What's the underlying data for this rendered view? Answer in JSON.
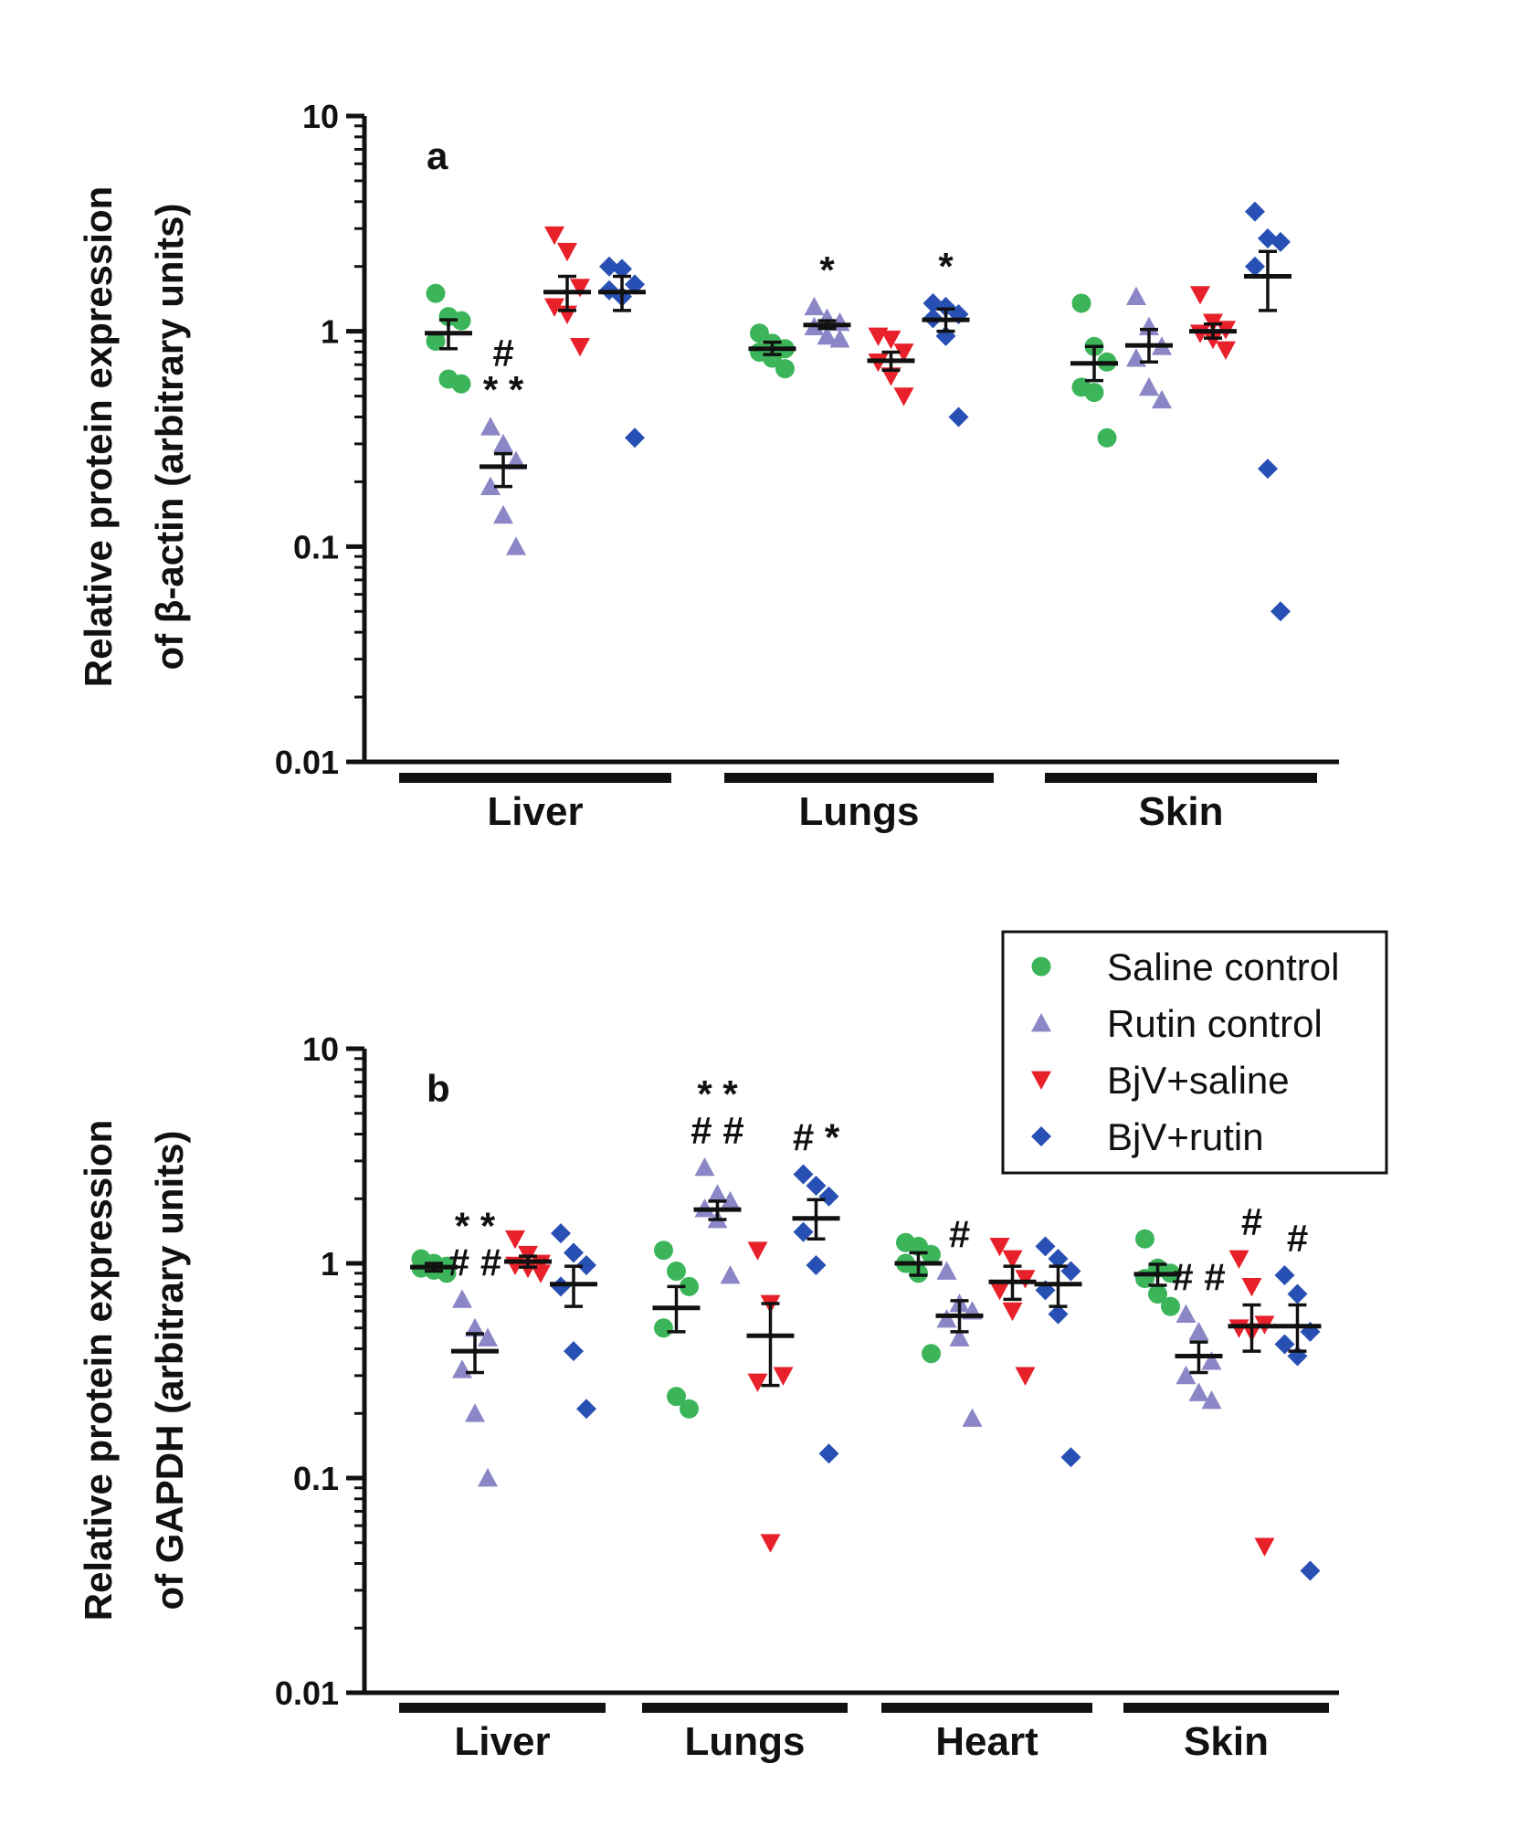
{
  "colors": {
    "saline_control": "#3cb55a",
    "rutin_control": "#8b86c6",
    "bjv_saline": "#e8202a",
    "bjv_rutin": "#2850b4",
    "axis": "#111111"
  },
  "legend": {
    "items": [
      {
        "name": "Saline control",
        "marker": "circle",
        "color": "#3cb55a"
      },
      {
        "name": "Rutin control",
        "marker": "triangle-up",
        "color": "#8b86c6"
      },
      {
        "name": "BjV+saline",
        "marker": "triangle-down",
        "color": "#e8202a"
      },
      {
        "name": "BjV+rutin",
        "marker": "diamond",
        "color": "#2850b4"
      }
    ]
  },
  "chart_data": [
    {
      "type": "scatter",
      "panel": "a",
      "ylabel_lines": [
        "Relative protein expression",
        "of β-actin (arbitrary units)"
      ],
      "yscale": "log",
      "ylim": [
        0.01,
        10
      ],
      "ytick_labels": [
        "10",
        "1",
        "0.1",
        "0.01"
      ],
      "categories": [
        "Liver",
        "Lungs",
        "Skin"
      ],
      "groups": [
        {
          "category": "Liver",
          "series": [
            {
              "name": "Saline control",
              "points": [
                1.5,
                1.17,
                1.12,
                0.9,
                0.6,
                0.57
              ],
              "mean": 0.98,
              "sem": [
                0.83,
                1.13
              ]
            },
            {
              "name": "Rutin control",
              "points": [
                0.36,
                0.3,
                0.25,
                0.19,
                0.14,
                0.1
              ],
              "mean": 0.235,
              "sem": [
                0.19,
                0.27
              ]
            },
            {
              "name": "BjV+saline",
              "points": [
                2.8,
                2.35,
                1.6,
                1.3,
                1.2,
                0.85
              ],
              "mean": 1.52,
              "sem": [
                1.25,
                1.8
              ]
            },
            {
              "name": "BjV+rutin",
              "points": [
                2.0,
                1.95,
                1.65,
                1.55,
                1.45,
                0.32
              ],
              "mean": 1.52,
              "sem": [
                1.25,
                1.8
              ]
            }
          ],
          "annotations": [
            "#",
            "**"
          ],
          "annotation_series": "Rutin control"
        },
        {
          "category": "Lungs",
          "series": [
            {
              "name": "Saline control",
              "points": [
                0.98,
                0.88,
                0.83,
                0.8,
                0.75,
                0.67
              ],
              "mean": 0.83,
              "sem": [
                0.78,
                0.89
              ]
            },
            {
              "name": "Rutin control",
              "points": [
                1.3,
                1.15,
                1.1,
                1.05,
                0.95,
                0.92
              ],
              "mean": 1.07,
              "sem": [
                1.03,
                1.12
              ]
            },
            {
              "name": "BjV+saline",
              "points": [
                0.95,
                0.92,
                0.8,
                0.72,
                0.62,
                0.5
              ],
              "mean": 0.73,
              "sem": [
                0.66,
                0.8
              ]
            },
            {
              "name": "BjV+rutin",
              "points": [
                1.35,
                1.3,
                1.2,
                1.15,
                0.95,
                0.4
              ],
              "mean": 1.13,
              "sem": [
                1.0,
                1.27
              ]
            }
          ],
          "annotations_by_series": [
            {
              "series": "Rutin control",
              "marks": [
                "*"
              ]
            },
            {
              "series": "BjV+rutin",
              "marks": [
                "*"
              ]
            }
          ]
        },
        {
          "category": "Skin",
          "series": [
            {
              "name": "Saline control",
              "points": [
                1.35,
                0.85,
                0.72,
                0.55,
                0.52,
                0.32
              ],
              "mean": 0.71,
              "sem": [
                0.59,
                0.85
              ]
            },
            {
              "name": "Rutin control",
              "points": [
                1.45,
                1.05,
                0.85,
                0.75,
                0.55,
                0.48
              ],
              "mean": 0.86,
              "sem": [
                0.72,
                1.02
              ]
            },
            {
              "name": "BjV+saline",
              "points": [
                1.48,
                1.1,
                1.02,
                0.98,
                0.92,
                0.82
              ],
              "mean": 1.0,
              "sem": [
                0.93,
                1.08
              ]
            },
            {
              "name": "BjV+rutin",
              "points": [
                3.6,
                2.7,
                2.6,
                2.0,
                0.23,
                0.05
              ],
              "mean": 1.8,
              "sem": [
                1.25,
                2.35
              ]
            }
          ]
        }
      ]
    },
    {
      "type": "scatter",
      "panel": "b",
      "ylabel_lines": [
        "Relative protein expression",
        "of GAPDH (arbitrary units)"
      ],
      "yscale": "log",
      "ylim": [
        0.01,
        10
      ],
      "ytick_labels": [
        "10",
        "1",
        "0.1",
        "0.01"
      ],
      "categories": [
        "Liver",
        "Lungs",
        "Heart",
        "Skin"
      ],
      "groups": [
        {
          "category": "Liver",
          "series": [
            {
              "name": "Saline control",
              "points": [
                1.05,
                1.0,
                0.97,
                0.95,
                0.93,
                0.9
              ],
              "mean": 0.96,
              "sem": [
                0.92,
                1.0
              ]
            },
            {
              "name": "Rutin control",
              "points": [
                0.68,
                0.5,
                0.45,
                0.32,
                0.2,
                0.1
              ],
              "mean": 0.39,
              "sem": [
                0.31,
                0.47
              ]
            },
            {
              "name": "BjV+saline",
              "points": [
                1.3,
                1.1,
                1.0,
                0.98,
                0.95,
                0.9
              ],
              "mean": 1.02,
              "sem": [
                0.96,
                1.08
              ]
            },
            {
              "name": "BjV+rutin",
              "points": [
                1.38,
                1.12,
                0.98,
                0.78,
                0.39,
                0.21
              ],
              "mean": 0.8,
              "sem": [
                0.63,
                0.97
              ]
            }
          ],
          "annotations_by_series": [
            {
              "series": "Rutin control",
              "marks": [
                "**",
                "##"
              ]
            }
          ]
        },
        {
          "category": "Lungs",
          "series": [
            {
              "name": "Saline control",
              "points": [
                1.15,
                0.92,
                0.78,
                0.5,
                0.24,
                0.21
              ],
              "mean": 0.62,
              "sem": [
                0.48,
                0.78
              ]
            },
            {
              "name": "Rutin control",
              "points": [
                2.8,
                2.1,
                1.95,
                1.8,
                1.6,
                0.88
              ],
              "mean": 1.78,
              "sem": [
                1.6,
                1.95
              ]
            },
            {
              "name": "BjV+saline",
              "points": [
                1.15,
                0.65,
                0.3,
                0.28,
                0.05
              ],
              "mean": 0.46,
              "sem": [
                0.27,
                0.65
              ]
            },
            {
              "name": "BjV+rutin",
              "points": [
                2.6,
                2.3,
                2.05,
                1.4,
                0.98,
                0.13
              ],
              "mean": 1.62,
              "sem": [
                1.3,
                1.98
              ]
            }
          ],
          "annotations_by_series": [
            {
              "series": "Rutin control",
              "marks": [
                "**",
                "##"
              ]
            },
            {
              "series": "BjV+rutin",
              "marks": [
                "#*"
              ]
            }
          ]
        },
        {
          "category": "Heart",
          "series": [
            {
              "name": "Saline control",
              "points": [
                1.25,
                1.2,
                1.1,
                1.0,
                0.9,
                0.38
              ],
              "mean": 1.0,
              "sem": [
                0.88,
                1.12
              ]
            },
            {
              "name": "Rutin control",
              "points": [
                0.92,
                0.65,
                0.6,
                0.55,
                0.45,
                0.19
              ],
              "mean": 0.57,
              "sem": [
                0.48,
                0.67
              ]
            },
            {
              "name": "BjV+saline",
              "points": [
                1.2,
                1.05,
                0.85,
                0.75,
                0.6,
                0.3
              ],
              "mean": 0.82,
              "sem": [
                0.68,
                0.97
              ]
            },
            {
              "name": "BjV+rutin",
              "points": [
                1.2,
                1.05,
                0.92,
                0.75,
                0.58,
                0.125
              ],
              "mean": 0.8,
              "sem": [
                0.63,
                0.97
              ]
            }
          ],
          "annotations_by_series": [
            {
              "series": "Rutin control",
              "marks": [
                "#"
              ]
            }
          ]
        },
        {
          "category": "Skin",
          "series": [
            {
              "name": "Saline control",
              "points": [
                1.3,
                0.95,
                0.9,
                0.85,
                0.72,
                0.63
              ],
              "mean": 0.89,
              "sem": [
                0.79,
                0.99
              ]
            },
            {
              "name": "Rutin control",
              "points": [
                0.58,
                0.48,
                0.35,
                0.3,
                0.25,
                0.23
              ],
              "mean": 0.37,
              "sem": [
                0.31,
                0.43
              ]
            },
            {
              "name": "BjV+saline",
              "points": [
                1.05,
                0.78,
                0.52,
                0.5,
                0.48,
                0.048
              ],
              "mean": 0.51,
              "sem": [
                0.39,
                0.64
              ]
            },
            {
              "name": "BjV+rutin",
              "points": [
                0.88,
                0.72,
                0.48,
                0.42,
                0.37,
                0.037
              ],
              "mean": 0.51,
              "sem": [
                0.39,
                0.64
              ]
            }
          ],
          "annotations_by_series": [
            {
              "series": "Rutin control",
              "marks": [
                "##"
              ]
            },
            {
              "series": "BjV+saline",
              "marks": [
                "#"
              ]
            },
            {
              "series": "BjV+rutin",
              "marks": [
                "#"
              ]
            }
          ]
        }
      ]
    }
  ]
}
